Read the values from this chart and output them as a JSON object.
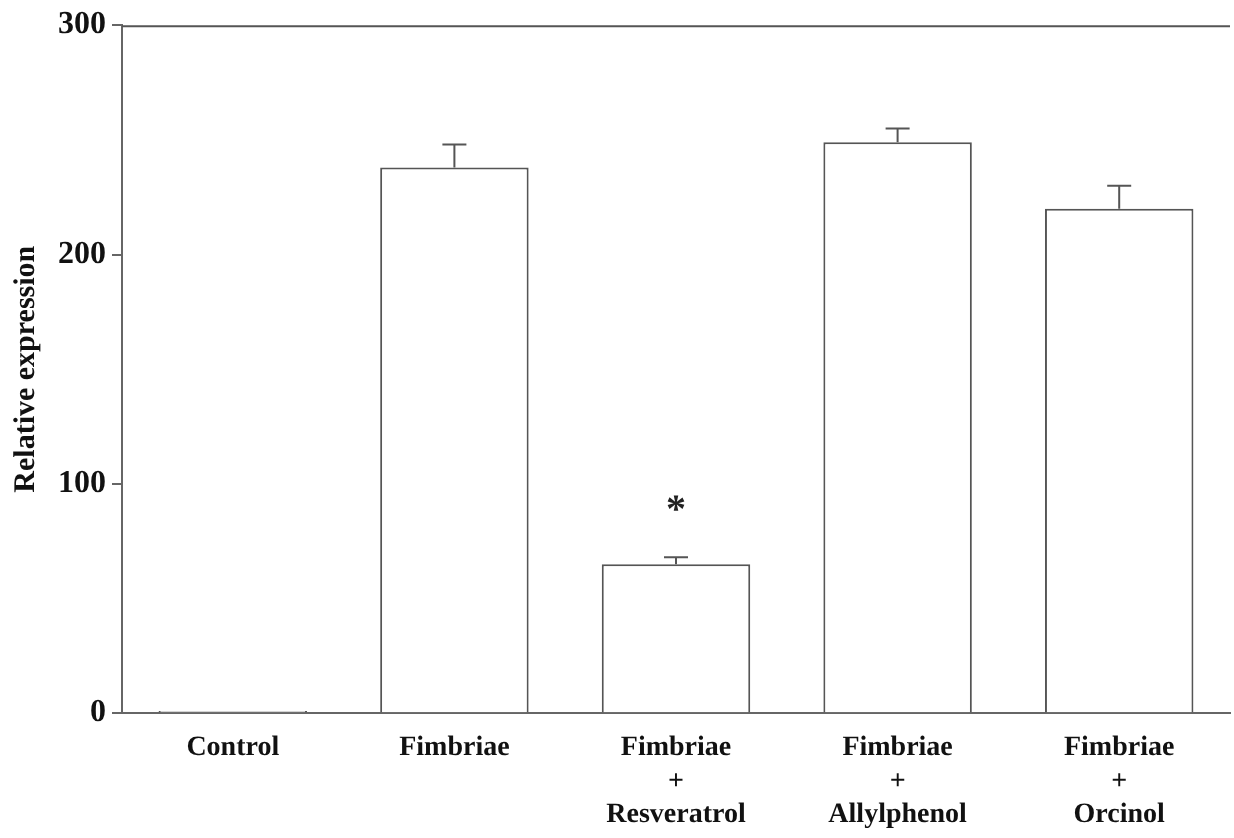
{
  "chart_data": {
    "type": "bar",
    "ylabel": "Relative expression",
    "categories": [
      "Control",
      "Fimbriae",
      "Fimbriae\n+\nResveratrol",
      "Fimbriae\n+\nAllylphenol",
      "Fimbriae\n+\nOrcinol"
    ],
    "values": [
      1,
      238,
      65,
      249,
      220
    ],
    "errors": [
      null,
      [
        238,
        248
      ],
      [
        65,
        68
      ],
      [
        249,
        255
      ],
      [
        220,
        230
      ]
    ],
    "color": "#ffffff",
    "ylim": [
      0,
      300
    ],
    "yticks": [
      0,
      100,
      200,
      300
    ],
    "grid": false,
    "legend": false,
    "annotations": [
      {
        "text": "*",
        "x": "Fimbriae\n+\nResveratrol",
        "y": 65
      }
    ]
  }
}
